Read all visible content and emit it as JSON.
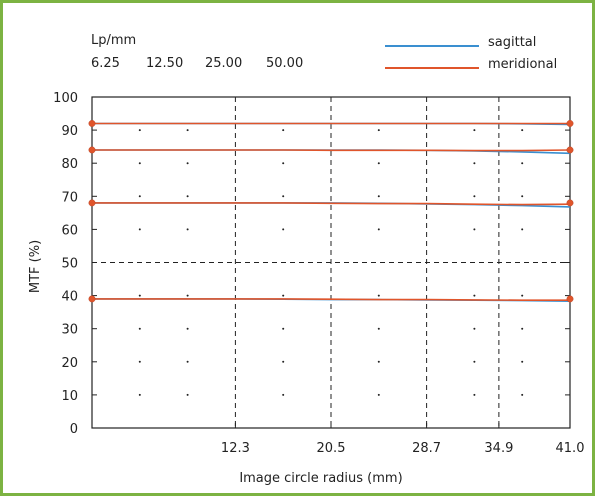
{
  "header": {
    "lp_title": "Lp/mm",
    "frequencies": [
      "6.25",
      "12.50",
      "25.00",
      "50.00"
    ]
  },
  "legend": {
    "sagittal": {
      "label": "sagittal",
      "color": "#3a8fd0"
    },
    "meridional": {
      "label": "meridional",
      "color": "#e0552b"
    }
  },
  "frame_color": "#7cb342",
  "chart_data": {
    "type": "line",
    "xlabel": "Image circle radius (mm)",
    "ylabel": "MTF (%)",
    "xlim": [
      0,
      41.0
    ],
    "ylim": [
      0,
      100
    ],
    "x_tick_labels": [
      "12.3",
      "20.5",
      "28.7",
      "34.9",
      "41.0"
    ],
    "x_tick_values": [
      12.3,
      20.5,
      28.7,
      34.9,
      41.0
    ],
    "y_tick_labels": [
      "0",
      "10",
      "20",
      "30",
      "40",
      "50",
      "60",
      "70",
      "80",
      "90",
      "100"
    ],
    "grid": "dashed at x = 12.3, 20.5, 28.7, 34.9 and y = 50",
    "x": [
      0,
      4.1,
      8.2,
      12.3,
      16.4,
      20.5,
      24.6,
      28.7,
      32.8,
      36.9,
      41.0
    ],
    "series": [
      {
        "name": "sagittal",
        "frequency": "6.25",
        "values": [
          92,
          92,
          92,
          92,
          92,
          92,
          92,
          92,
          92,
          91.9,
          91.7
        ]
      },
      {
        "name": "meridional",
        "frequency": "6.25",
        "values": [
          92,
          92,
          92,
          92,
          92,
          92,
          92,
          92,
          92,
          92,
          92
        ]
      },
      {
        "name": "sagittal",
        "frequency": "12.50",
        "values": [
          84,
          84,
          84,
          84,
          84,
          84,
          84,
          83.9,
          83.7,
          83.4,
          83
        ]
      },
      {
        "name": "meridional",
        "frequency": "12.50",
        "values": [
          84,
          84,
          84,
          84,
          84,
          83.9,
          83.9,
          83.9,
          83.8,
          83.8,
          84
        ]
      },
      {
        "name": "sagittal",
        "frequency": "25.00",
        "values": [
          68,
          68,
          68,
          68,
          68,
          68,
          67.9,
          67.7,
          67.5,
          67.2,
          66.8
        ]
      },
      {
        "name": "meridional",
        "frequency": "25.00",
        "values": [
          68,
          68,
          68,
          68,
          68,
          67.9,
          67.8,
          67.8,
          67.6,
          67.5,
          67.6
        ]
      },
      {
        "name": "sagittal",
        "frequency": "50.00",
        "values": [
          39,
          39,
          39,
          39,
          38.9,
          38.8,
          38.8,
          38.7,
          38.6,
          38.5,
          38.3
        ]
      },
      {
        "name": "meridional",
        "frequency": "50.00",
        "values": [
          39,
          39,
          39,
          39,
          39,
          38.9,
          38.8,
          38.8,
          38.7,
          38.6,
          38.6
        ]
      }
    ],
    "markers": {
      "y": [
        92,
        84,
        68,
        39
      ],
      "color": "#e0552b"
    }
  }
}
